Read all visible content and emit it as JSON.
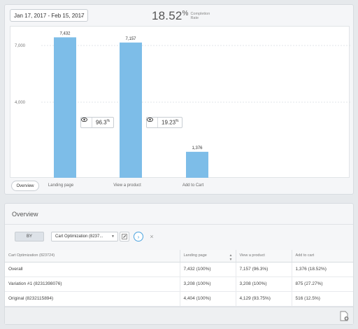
{
  "header": {
    "date_range": "Jan 17, 2017 - Feb 15, 2017",
    "completion_value": "18.52",
    "completion_unit": "%",
    "completion_label_line1": "Completion",
    "completion_label_line2": "Rate"
  },
  "chart_data": {
    "type": "bar",
    "categories": [
      "Landing page",
      "View a product",
      "Add to Cart"
    ],
    "values": [
      7432,
      7157,
      1376
    ],
    "value_labels": [
      "7,432",
      "7,157",
      "1,376"
    ],
    "yticks": [
      {
        "value": 7000,
        "label": "7,000"
      },
      {
        "value": 4000,
        "label": "4,000"
      }
    ],
    "ylim": [
      0,
      8000
    ],
    "grid": true,
    "bar_color": "#7dbde8",
    "step_rates": [
      {
        "value": "96.3",
        "unit": "%"
      },
      {
        "value": "19.23",
        "unit": "%"
      }
    ]
  },
  "overview_button_label": "Overview",
  "overview": {
    "title": "Overview",
    "by_label": "BY",
    "segment_select": "Cart Optimization (8237...",
    "columns": [
      "Cart Optimization (823724)",
      "Landing page",
      "View a product",
      "Add to cart"
    ],
    "rows": [
      [
        "Overall",
        "7,432 (100%)",
        "7,157 (96.3%)",
        "1,376 (18.52%)"
      ],
      [
        "Variation #1 (8231398076)",
        "3,208 (100%)",
        "3,208 (100%)",
        "875 (27.27%)"
      ],
      [
        "Original (8232115894)",
        "4,404 (100%)",
        "4,129 (93.75%)",
        "516 (12.5%)"
      ]
    ]
  },
  "icons": {
    "date_chevron": "chevron-down-icon",
    "step_eye": "eye-icon",
    "segment_edit": "edit-icon",
    "segment_next": "chevron-right-icon",
    "segment_clear": "close-icon",
    "sort": "sort-icon",
    "export": "export-icon"
  },
  "colors": {
    "accent": "#4aa3df",
    "bar": "#7dbde8"
  }
}
